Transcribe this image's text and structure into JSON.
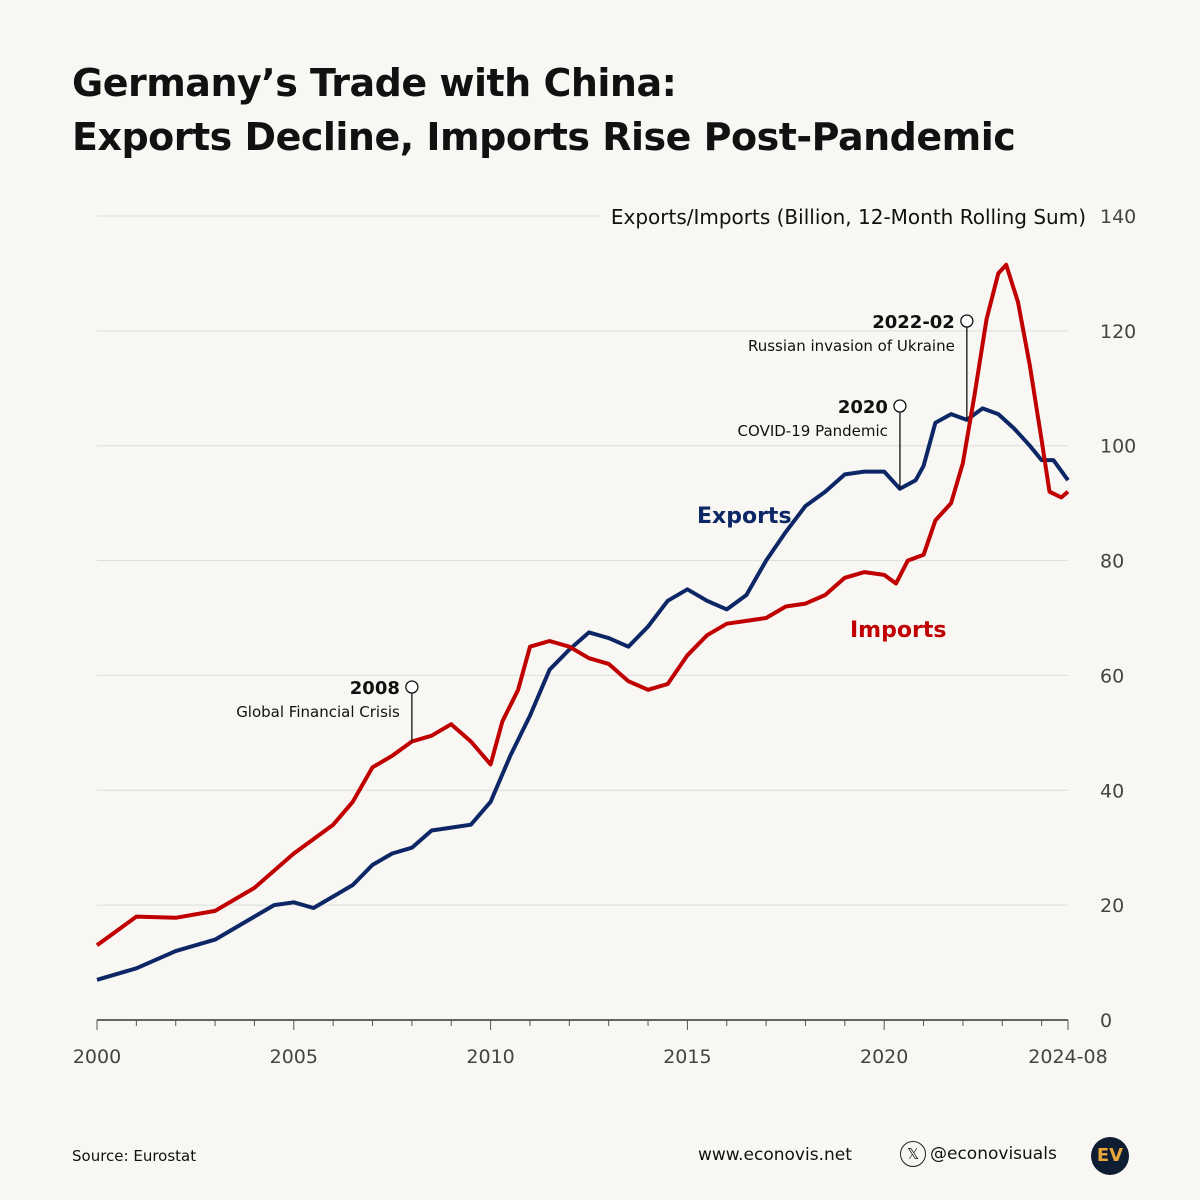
{
  "title_line1": "Germany’s Trade with China:",
  "title_line2": "Exports Decline, Imports Rise Post-Pandemic",
  "colors": {
    "exports": "#0d2766",
    "imports": "#c00000",
    "background": "#f8f7f3"
  },
  "chart_data": {
    "type": "line",
    "ylabel": "Exports/Imports (Billion, 12-Month Rolling Sum)",
    "ylim": [
      0,
      140
    ],
    "yticks": [
      "0",
      "20",
      "40",
      "60",
      "80",
      "100",
      "120",
      "140"
    ],
    "xlim": [
      2000,
      2024.67
    ],
    "xticks": [
      {
        "v": 2000,
        "label": "2000"
      },
      {
        "v": 2005,
        "label": "2005"
      },
      {
        "v": 2010,
        "label": "2010"
      },
      {
        "v": 2015,
        "label": "2015"
      },
      {
        "v": 2020,
        "label": "2020"
      },
      {
        "v": 2024.67,
        "label": "2024-08"
      }
    ],
    "grid": true,
    "series": [
      {
        "name": "Exports",
        "color": "#0d2766",
        "x": [
          2000,
          2001,
          2002,
          2003,
          2004,
          2004.5,
          2005,
          2005.5,
          2006,
          2006.5,
          2007,
          2007.5,
          2008,
          2008.5,
          2009,
          2009.5,
          2010,
          2010.5,
          2011,
          2011.5,
          2012,
          2012.5,
          2013,
          2013.5,
          2014,
          2014.5,
          2015,
          2015.5,
          2016,
          2016.5,
          2017,
          2017.5,
          2018,
          2018.5,
          2019,
          2019.5,
          2020,
          2020.4,
          2020.8,
          2021,
          2021.3,
          2021.7,
          2022.1,
          2022.5,
          2022.9,
          2023.3,
          2023.7,
          2024,
          2024.3,
          2024.67
        ],
        "y": [
          7,
          9,
          12,
          14,
          18,
          20,
          20.5,
          19.5,
          21.5,
          23.5,
          27,
          29,
          30,
          33,
          33.5,
          34,
          38,
          46,
          53,
          61,
          64.5,
          67.5,
          66.5,
          65,
          68.5,
          73,
          75,
          73,
          71.5,
          74,
          80,
          85,
          89.5,
          92,
          95,
          95.5,
          95.5,
          92.5,
          94,
          96.5,
          104,
          105.5,
          104.5,
          106.5,
          105.5,
          103,
          100,
          97.5,
          97.5,
          94
        ]
      },
      {
        "name": "Imports",
        "color": "#c00000",
        "x": [
          2000,
          2001,
          2002,
          2003,
          2004,
          2005,
          2006,
          2006.5,
          2007,
          2007.5,
          2008,
          2008.5,
          2009,
          2009.5,
          2010,
          2010.3,
          2010.7,
          2011,
          2011.5,
          2012,
          2012.5,
          2013,
          2013.5,
          2014,
          2014.5,
          2015,
          2015.5,
          2016,
          2016.5,
          2017,
          2017.5,
          2018,
          2018.5,
          2019,
          2019.5,
          2020,
          2020.3,
          2020.6,
          2021,
          2021.3,
          2021.7,
          2022,
          2022.3,
          2022.6,
          2022.9,
          2023.1,
          2023.4,
          2023.7,
          2024,
          2024.2,
          2024.5,
          2024.67
        ],
        "y": [
          13,
          18,
          17.8,
          19,
          23,
          29,
          34,
          38,
          44,
          46,
          48.5,
          49.5,
          51.5,
          48.5,
          44.5,
          52,
          57.5,
          65,
          66,
          65,
          63,
          62,
          59,
          57.5,
          58.5,
          63.5,
          67,
          69,
          69.5,
          70,
          72,
          72.5,
          74,
          77,
          78,
          77.5,
          76,
          80,
          81,
          87,
          90,
          97,
          109,
          122,
          130,
          131.5,
          125,
          114,
          101,
          92,
          91,
          92
        ]
      }
    ],
    "annotations": [
      {
        "x": 2008,
        "y": 48.5,
        "label": "2008",
        "text": "Global Financial Crisis"
      },
      {
        "x": 2020.4,
        "y": 92.5,
        "label": "2020",
        "text": "COVID-19 Pandemic"
      },
      {
        "x": 2022.1,
        "y": 104.5,
        "label": "2022-02",
        "text": "Russian invasion of Ukraine"
      }
    ]
  },
  "footer": {
    "source": "Source: Eurostat",
    "website": "www.econovis.net",
    "handle": "@econovisuals",
    "x_icon": "x-logo-icon",
    "logo": "EV"
  }
}
